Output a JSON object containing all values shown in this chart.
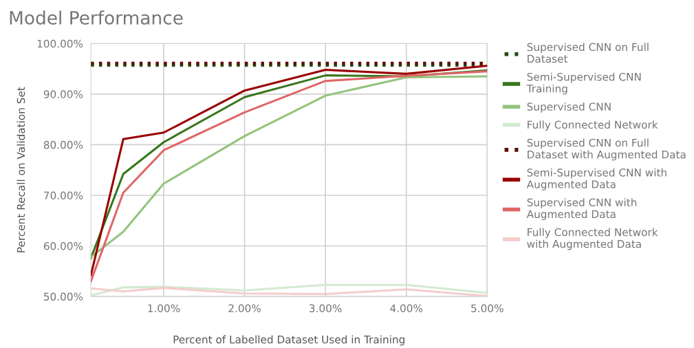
{
  "chart_data": {
    "type": "line",
    "title": "Model Performance",
    "xlabel": "Percent of Labelled Dataset Used in Training",
    "ylabel": "Percent Recall on Validation Set",
    "x": [
      0.1,
      0.5,
      1,
      2,
      3,
      4,
      5
    ],
    "series": [
      {
        "name": "Supervised CNN on Full Dataset",
        "color": "#274e13",
        "line_style": "dotted",
        "values": [
          95.7,
          95.7,
          95.7,
          95.7,
          95.7,
          95.7,
          95.7
        ]
      },
      {
        "name": "Semi-Supervised CNN Training",
        "color": "#38761d",
        "values": [
          57.6,
          74.2,
          80.5,
          89.4,
          93.7,
          93.5,
          94.7
        ]
      },
      {
        "name": "Supervised CNN",
        "color": "#93c47d",
        "values": [
          57.8,
          62.8,
          72.3,
          81.7,
          89.7,
          93.3,
          93.5
        ]
      },
      {
        "name": "Fully Connected Network",
        "color": "#d3ead0",
        "values": [
          50.2,
          51.8,
          51.9,
          51.2,
          52.3,
          52.3,
          50.7
        ]
      },
      {
        "name": "Supervised CNN on Full Dataset with Augmented Data",
        "color": "#5b0f00",
        "line_style": "dotted",
        "values": [
          96.1,
          96.1,
          96.1,
          96.1,
          96.1,
          96.1,
          96.1
        ]
      },
      {
        "name": "Semi-Supervised CNN with Augmented Data",
        "color": "#990000",
        "values": [
          54.2,
          81.1,
          82.4,
          90.7,
          94.8,
          94.0,
          95.6
        ]
      },
      {
        "name": "Supervised CNN with Augmented Data",
        "color": "#e06666",
        "values": [
          53.0,
          70.5,
          78.9,
          86.4,
          92.6,
          93.6,
          94.5
        ]
      },
      {
        "name": "Fully Connected Network with Augmented Data",
        "color": "#f4cccc",
        "values": [
          51.6,
          51.0,
          51.7,
          50.6,
          50.5,
          51.4,
          50.1
        ]
      }
    ],
    "xlim": [
      0.1,
      5
    ],
    "xticks": [
      {
        "value": 1,
        "label": "1.00%"
      },
      {
        "value": 2,
        "label": "2.00%"
      },
      {
        "value": 3,
        "label": "3.00%"
      },
      {
        "value": 4,
        "label": "4.00%"
      },
      {
        "value": 5,
        "label": "5.00%"
      }
    ],
    "ylim": [
      50,
      100
    ],
    "yticks": [
      {
        "value": 50,
        "label": "50.00%"
      },
      {
        "value": 60,
        "label": "60.00%"
      },
      {
        "value": 70,
        "label": "70.00%"
      },
      {
        "value": 80,
        "label": "80.00%"
      },
      {
        "value": 90,
        "label": "90.00%"
      },
      {
        "value": 100,
        "label": "100.00%"
      }
    ],
    "grid": true,
    "legend": "right",
    "line_style": "solid"
  }
}
